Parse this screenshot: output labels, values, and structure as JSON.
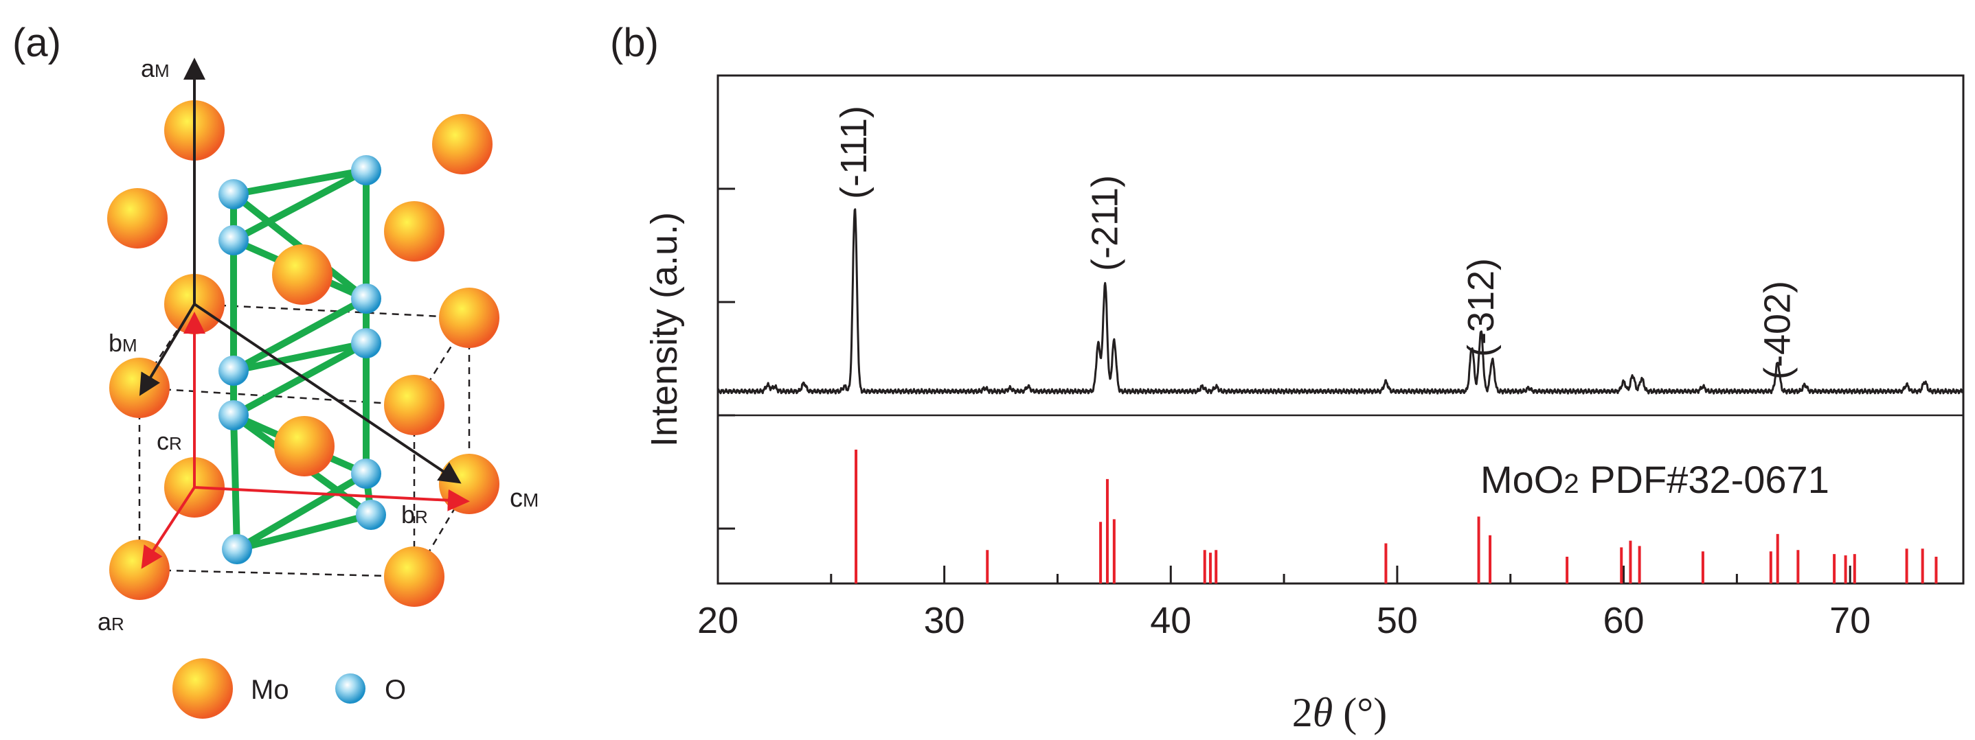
{
  "panel_a": {
    "label": "(a)",
    "axis_labels": {
      "aM": {
        "base": "a",
        "sub": "M"
      },
      "bM": {
        "base": "b",
        "sub": "M"
      },
      "cM": {
        "base": "c",
        "sub": "M"
      },
      "aR": {
        "base": "a",
        "sub": "R"
      },
      "bR": {
        "base": "b",
        "sub": "R"
      },
      "cR": {
        "base": "c",
        "sub": "R"
      }
    },
    "legend": {
      "mo": "Mo",
      "o": "O"
    },
    "colors": {
      "mo": "#f7941d",
      "o": "#29a3dc",
      "bond": "#1aab4b",
      "monoclinic_axes": "#231f20",
      "rutile_axes": "#e8202a"
    }
  },
  "panel_b": {
    "label": "(b)",
    "xlabel_symbol": "2",
    "xlabel_theta": "θ",
    "xlabel_unit": "(°)",
    "ylabel": "Intensity (a.u.)",
    "reference_label": {
      "formula_base": "MoO",
      "formula_sub": "2",
      "pdf": "PDF#32-0671"
    },
    "colors": {
      "pattern": "#231f20",
      "reference": "#e8202a"
    }
  },
  "chart_data": {
    "type": "line",
    "xlim": [
      20,
      75
    ],
    "xticks": [
      20,
      30,
      40,
      50,
      60,
      70
    ],
    "xtick_labels": [
      "20",
      "30",
      "40",
      "50",
      "60",
      "70"
    ],
    "ylabel": "Intensity (a.u.)",
    "grid": false,
    "annotations": [
      {
        "text": "(-111)",
        "x": 26.0
      },
      {
        "text": "(-211)",
        "x": 37.1
      },
      {
        "text": "(-312)",
        "x": 53.7
      },
      {
        "text": "(-402)",
        "x": 66.8
      }
    ],
    "series": [
      {
        "peaks": [
          {
            "x": 22.2,
            "h": 0.02
          },
          {
            "x": 22.5,
            "h": 0.015
          },
          {
            "x": 23.8,
            "h": 0.025
          },
          {
            "x": 25.6,
            "h": 0.015
          },
          {
            "x": 26.05,
            "h": 0.58
          },
          {
            "x": 31.8,
            "h": 0.01
          },
          {
            "x": 32.9,
            "h": 0.01
          },
          {
            "x": 33.7,
            "h": 0.015
          },
          {
            "x": 36.8,
            "h": 0.15
          },
          {
            "x": 37.1,
            "h": 0.34
          },
          {
            "x": 37.5,
            "h": 0.16
          },
          {
            "x": 41.4,
            "h": 0.015
          },
          {
            "x": 42.0,
            "h": 0.015
          },
          {
            "x": 49.5,
            "h": 0.03
          },
          {
            "x": 53.3,
            "h": 0.14
          },
          {
            "x": 53.7,
            "h": 0.19
          },
          {
            "x": 54.2,
            "h": 0.1
          },
          {
            "x": 55.8,
            "h": 0.01
          },
          {
            "x": 60.0,
            "h": 0.03
          },
          {
            "x": 60.4,
            "h": 0.05
          },
          {
            "x": 60.8,
            "h": 0.04
          },
          {
            "x": 63.5,
            "h": 0.015
          },
          {
            "x": 66.8,
            "h": 0.09
          },
          {
            "x": 68.0,
            "h": 0.02
          },
          {
            "x": 72.5,
            "h": 0.02
          },
          {
            "x": 73.3,
            "h": 0.03
          }
        ]
      },
      {
        "name": "MoO2 PDF#32-0671",
        "sticks": [
          {
            "x": 26.1,
            "h": 1.0
          },
          {
            "x": 31.9,
            "h": 0.25
          },
          {
            "x": 36.9,
            "h": 0.46
          },
          {
            "x": 37.2,
            "h": 0.78
          },
          {
            "x": 37.5,
            "h": 0.48
          },
          {
            "x": 41.5,
            "h": 0.25
          },
          {
            "x": 41.75,
            "h": 0.23
          },
          {
            "x": 42.0,
            "h": 0.25
          },
          {
            "x": 49.5,
            "h": 0.3
          },
          {
            "x": 53.6,
            "h": 0.5
          },
          {
            "x": 54.1,
            "h": 0.36
          },
          {
            "x": 57.5,
            "h": 0.2
          },
          {
            "x": 59.9,
            "h": 0.27
          },
          {
            "x": 60.3,
            "h": 0.32
          },
          {
            "x": 60.7,
            "h": 0.28
          },
          {
            "x": 63.5,
            "h": 0.24
          },
          {
            "x": 66.5,
            "h": 0.24
          },
          {
            "x": 66.8,
            "h": 0.37
          },
          {
            "x": 67.7,
            "h": 0.25
          },
          {
            "x": 69.3,
            "h": 0.22
          },
          {
            "x": 69.8,
            "h": 0.21
          },
          {
            "x": 70.2,
            "h": 0.22
          },
          {
            "x": 72.5,
            "h": 0.26
          },
          {
            "x": 73.2,
            "h": 0.26
          },
          {
            "x": 73.8,
            "h": 0.2
          }
        ]
      }
    ]
  }
}
